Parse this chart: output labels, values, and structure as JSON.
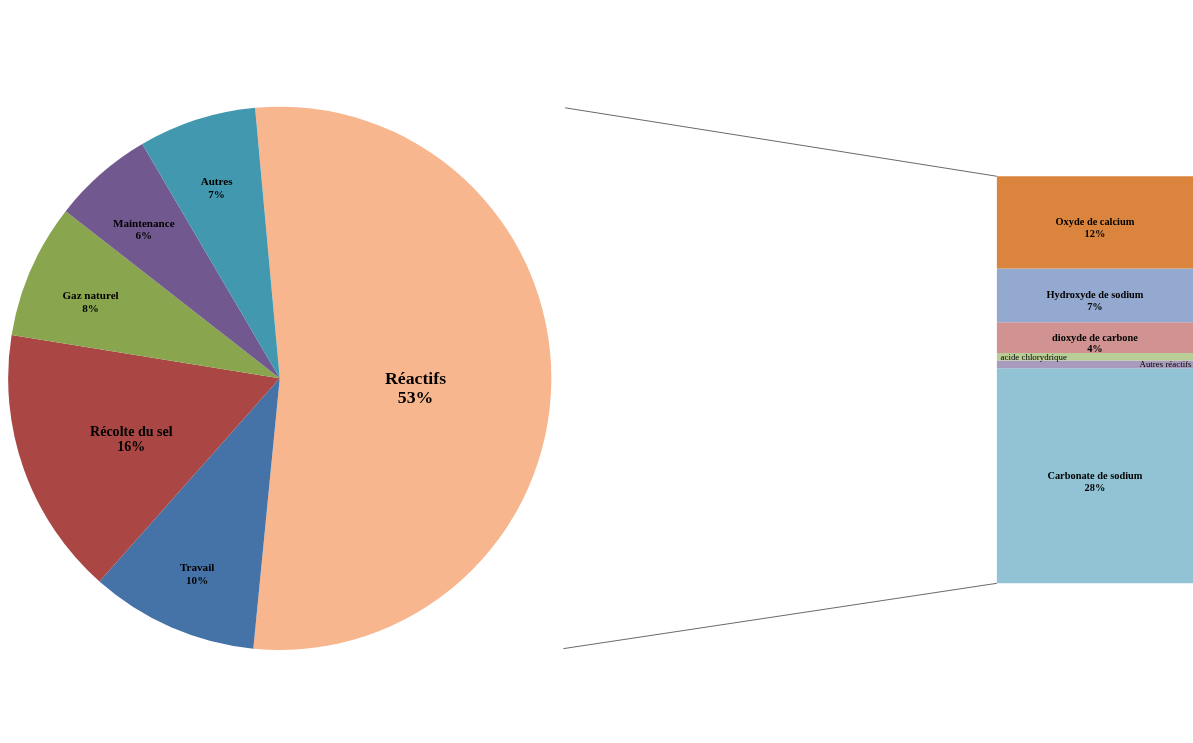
{
  "chart_data": [
    {
      "type": "pie",
      "categories": [
        "Réactifs",
        "Travail",
        "Récolte du sel",
        "Gaz naturel",
        "Maintenance",
        "Autres"
      ],
      "values": [
        53,
        10,
        16,
        8,
        6,
        7
      ],
      "colors": [
        "#f8b68f",
        "#4572a7",
        "#aa4643",
        "#89a54e",
        "#71588f",
        "#4198af"
      ],
      "value_labels": [
        "53%",
        "10%",
        "16%",
        "8%",
        "6%",
        "7%"
      ]
    },
    {
      "type": "bar",
      "stacked": true,
      "categories": [
        null
      ],
      "series": [
        {
          "name": "Carbonate de sodium",
          "color": "#92c3d5",
          "values": [
            28
          ],
          "value_labels": [
            "28%"
          ]
        },
        {
          "name": "Autres réactifs",
          "color": "#a99bbd",
          "values": [
            1
          ],
          "value_labels": [
            null
          ]
        },
        {
          "name": "acide chlorydrique",
          "color": "#b9cd96",
          "values": [
            1
          ],
          "value_labels": [
            null
          ]
        },
        {
          "name": "dioxyde de carbone",
          "color": "#d19392",
          "values": [
            4
          ],
          "value_labels": [
            "4%"
          ]
        },
        {
          "name": "Hydroxyde de sodium",
          "color": "#93a9cf",
          "values": [
            7
          ],
          "value_labels": [
            "7%"
          ]
        },
        {
          "name": "Oxyde de calcium",
          "color": "#db843d",
          "values": [
            12
          ],
          "value_labels": [
            "12%"
          ]
        }
      ]
    }
  ]
}
